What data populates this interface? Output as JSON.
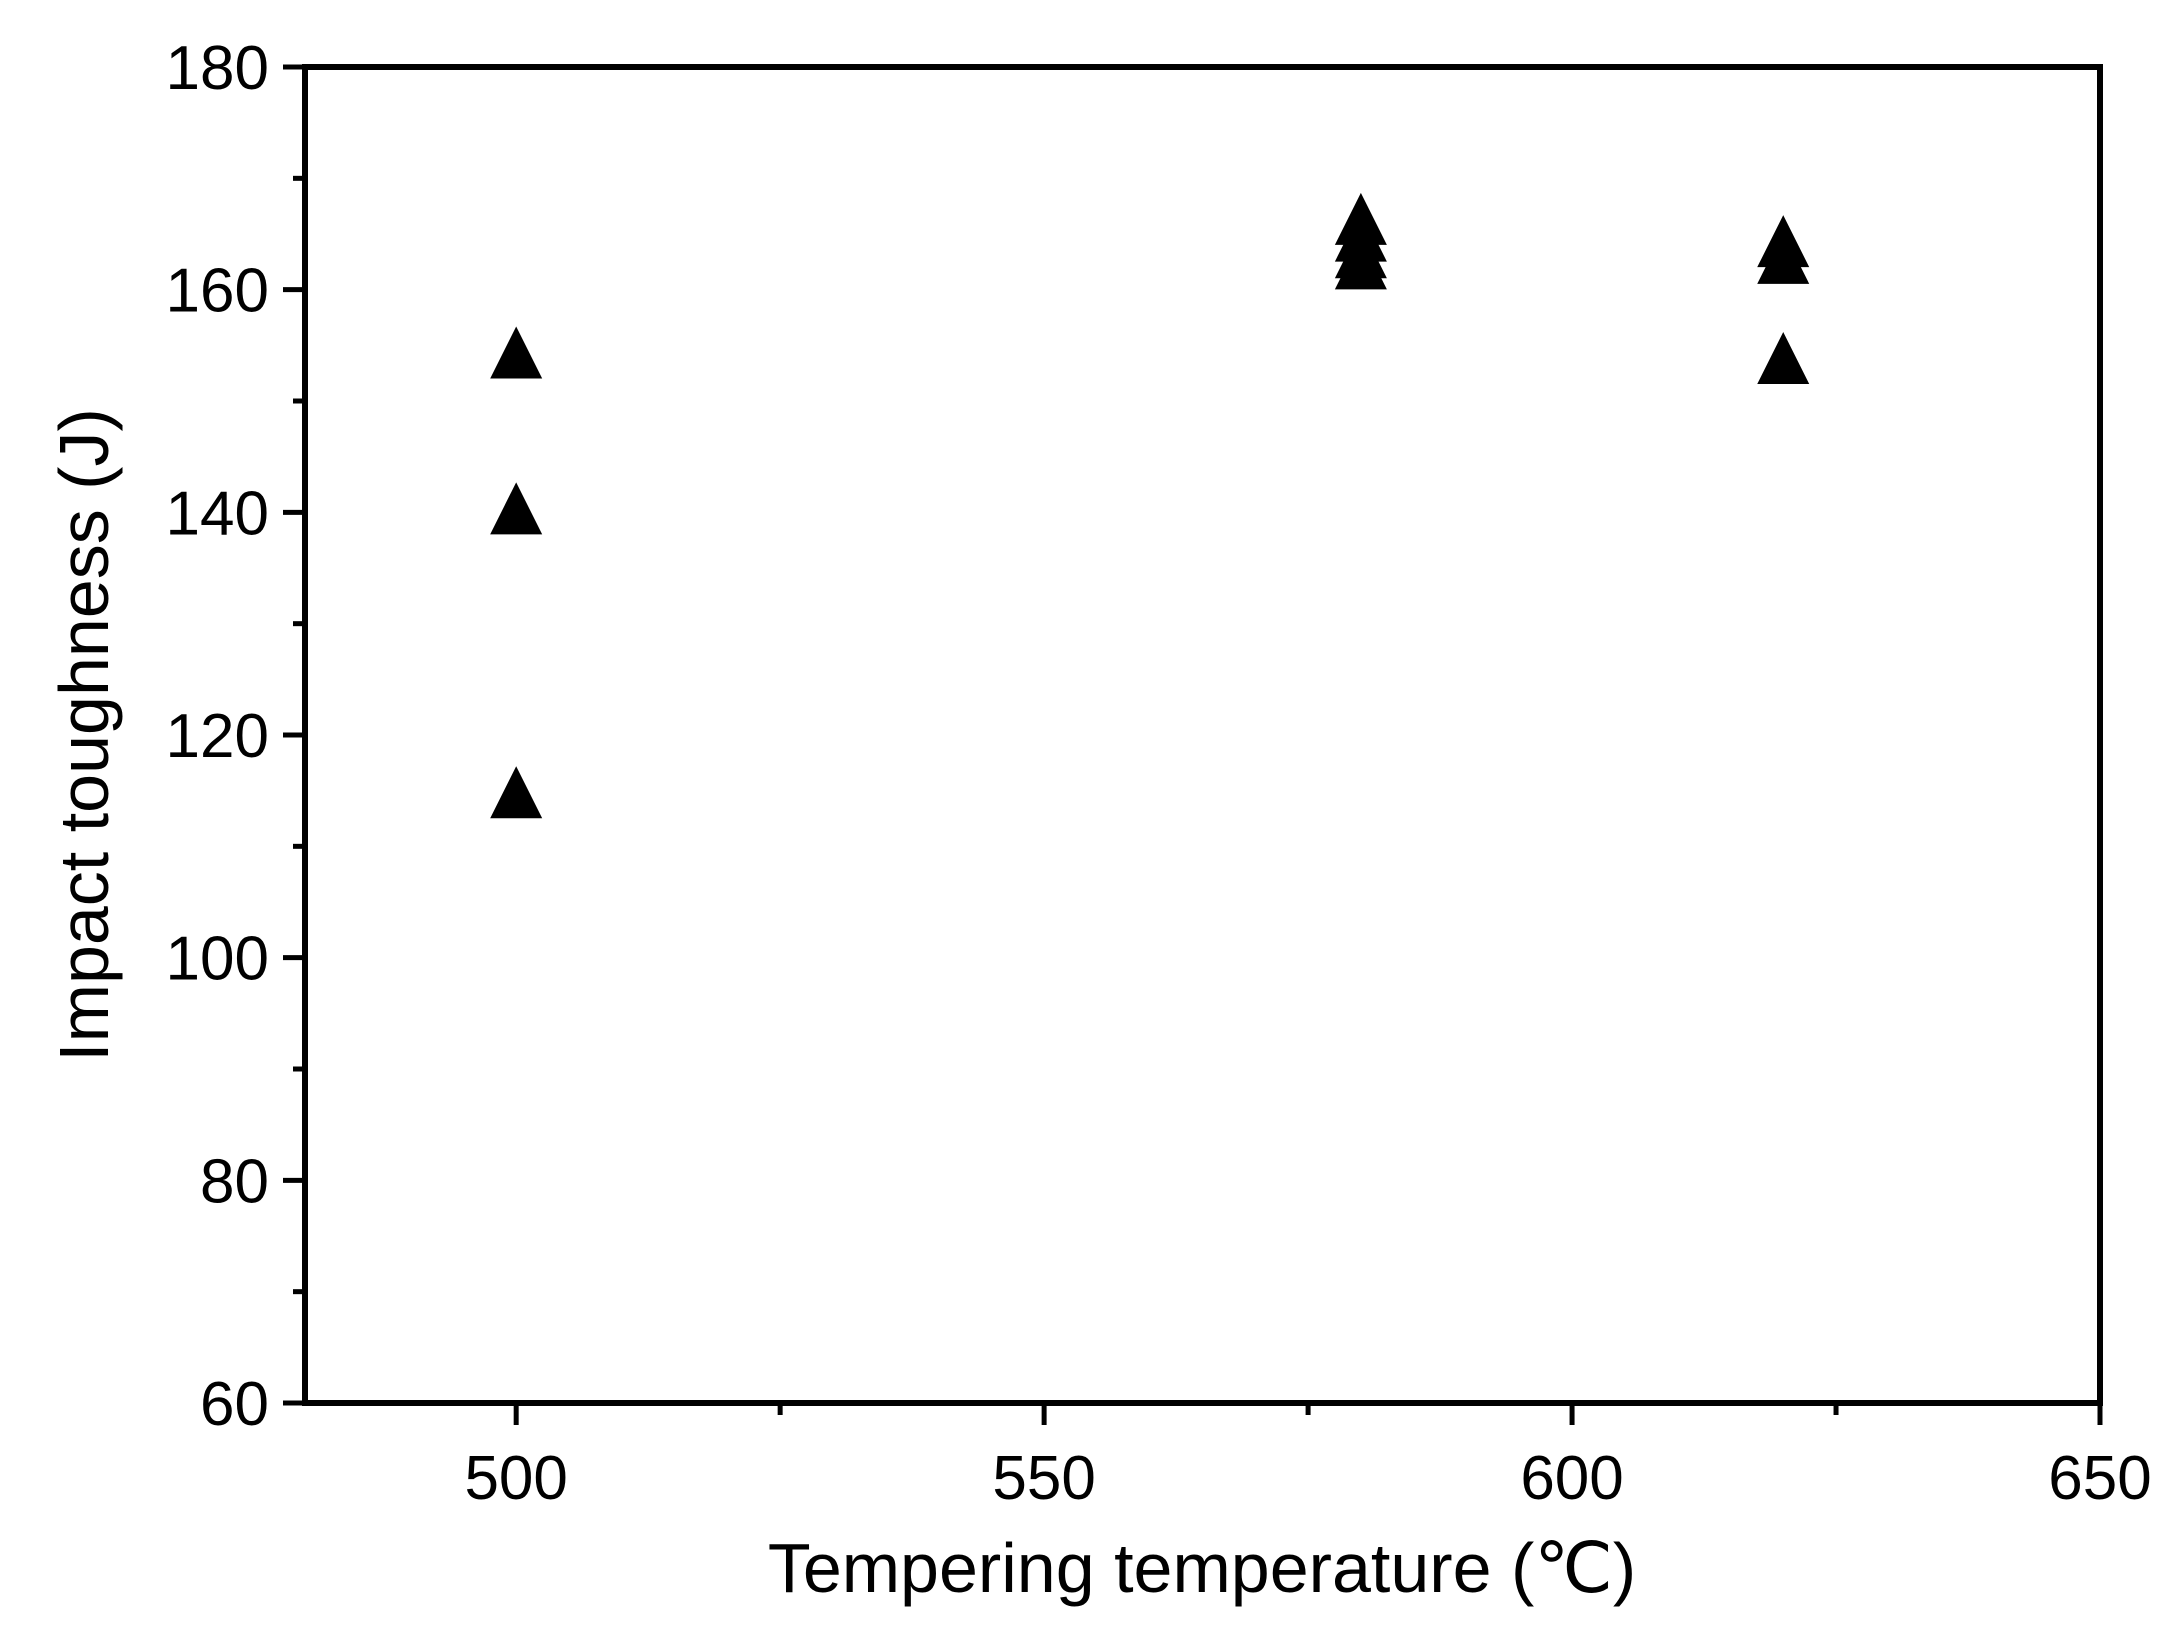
{
  "chart_data": {
    "type": "scatter",
    "title": "",
    "xlabel": "Tempering temperature (℃)",
    "ylabel": "Impact toughness (J)",
    "xlim": [
      480,
      650
    ],
    "ylim": [
      60,
      180
    ],
    "x_ticks": [
      500,
      550,
      600,
      650
    ],
    "y_ticks": [
      60,
      80,
      100,
      120,
      140,
      160,
      180
    ],
    "grid": false,
    "marker": "filled-triangle",
    "marker_color": "#000000",
    "series": [
      {
        "points": [
          {
            "x": 500,
            "y": 154
          },
          {
            "x": 500,
            "y": 140
          },
          {
            "x": 500,
            "y": 114.5
          },
          {
            "x": 580,
            "y": 166
          },
          {
            "x": 580,
            "y": 164.5
          },
          {
            "x": 580,
            "y": 163
          },
          {
            "x": 580,
            "y": 162
          },
          {
            "x": 620,
            "y": 164
          },
          {
            "x": 620,
            "y": 162.5
          },
          {
            "x": 620,
            "y": 153.5
          }
        ]
      }
    ]
  }
}
